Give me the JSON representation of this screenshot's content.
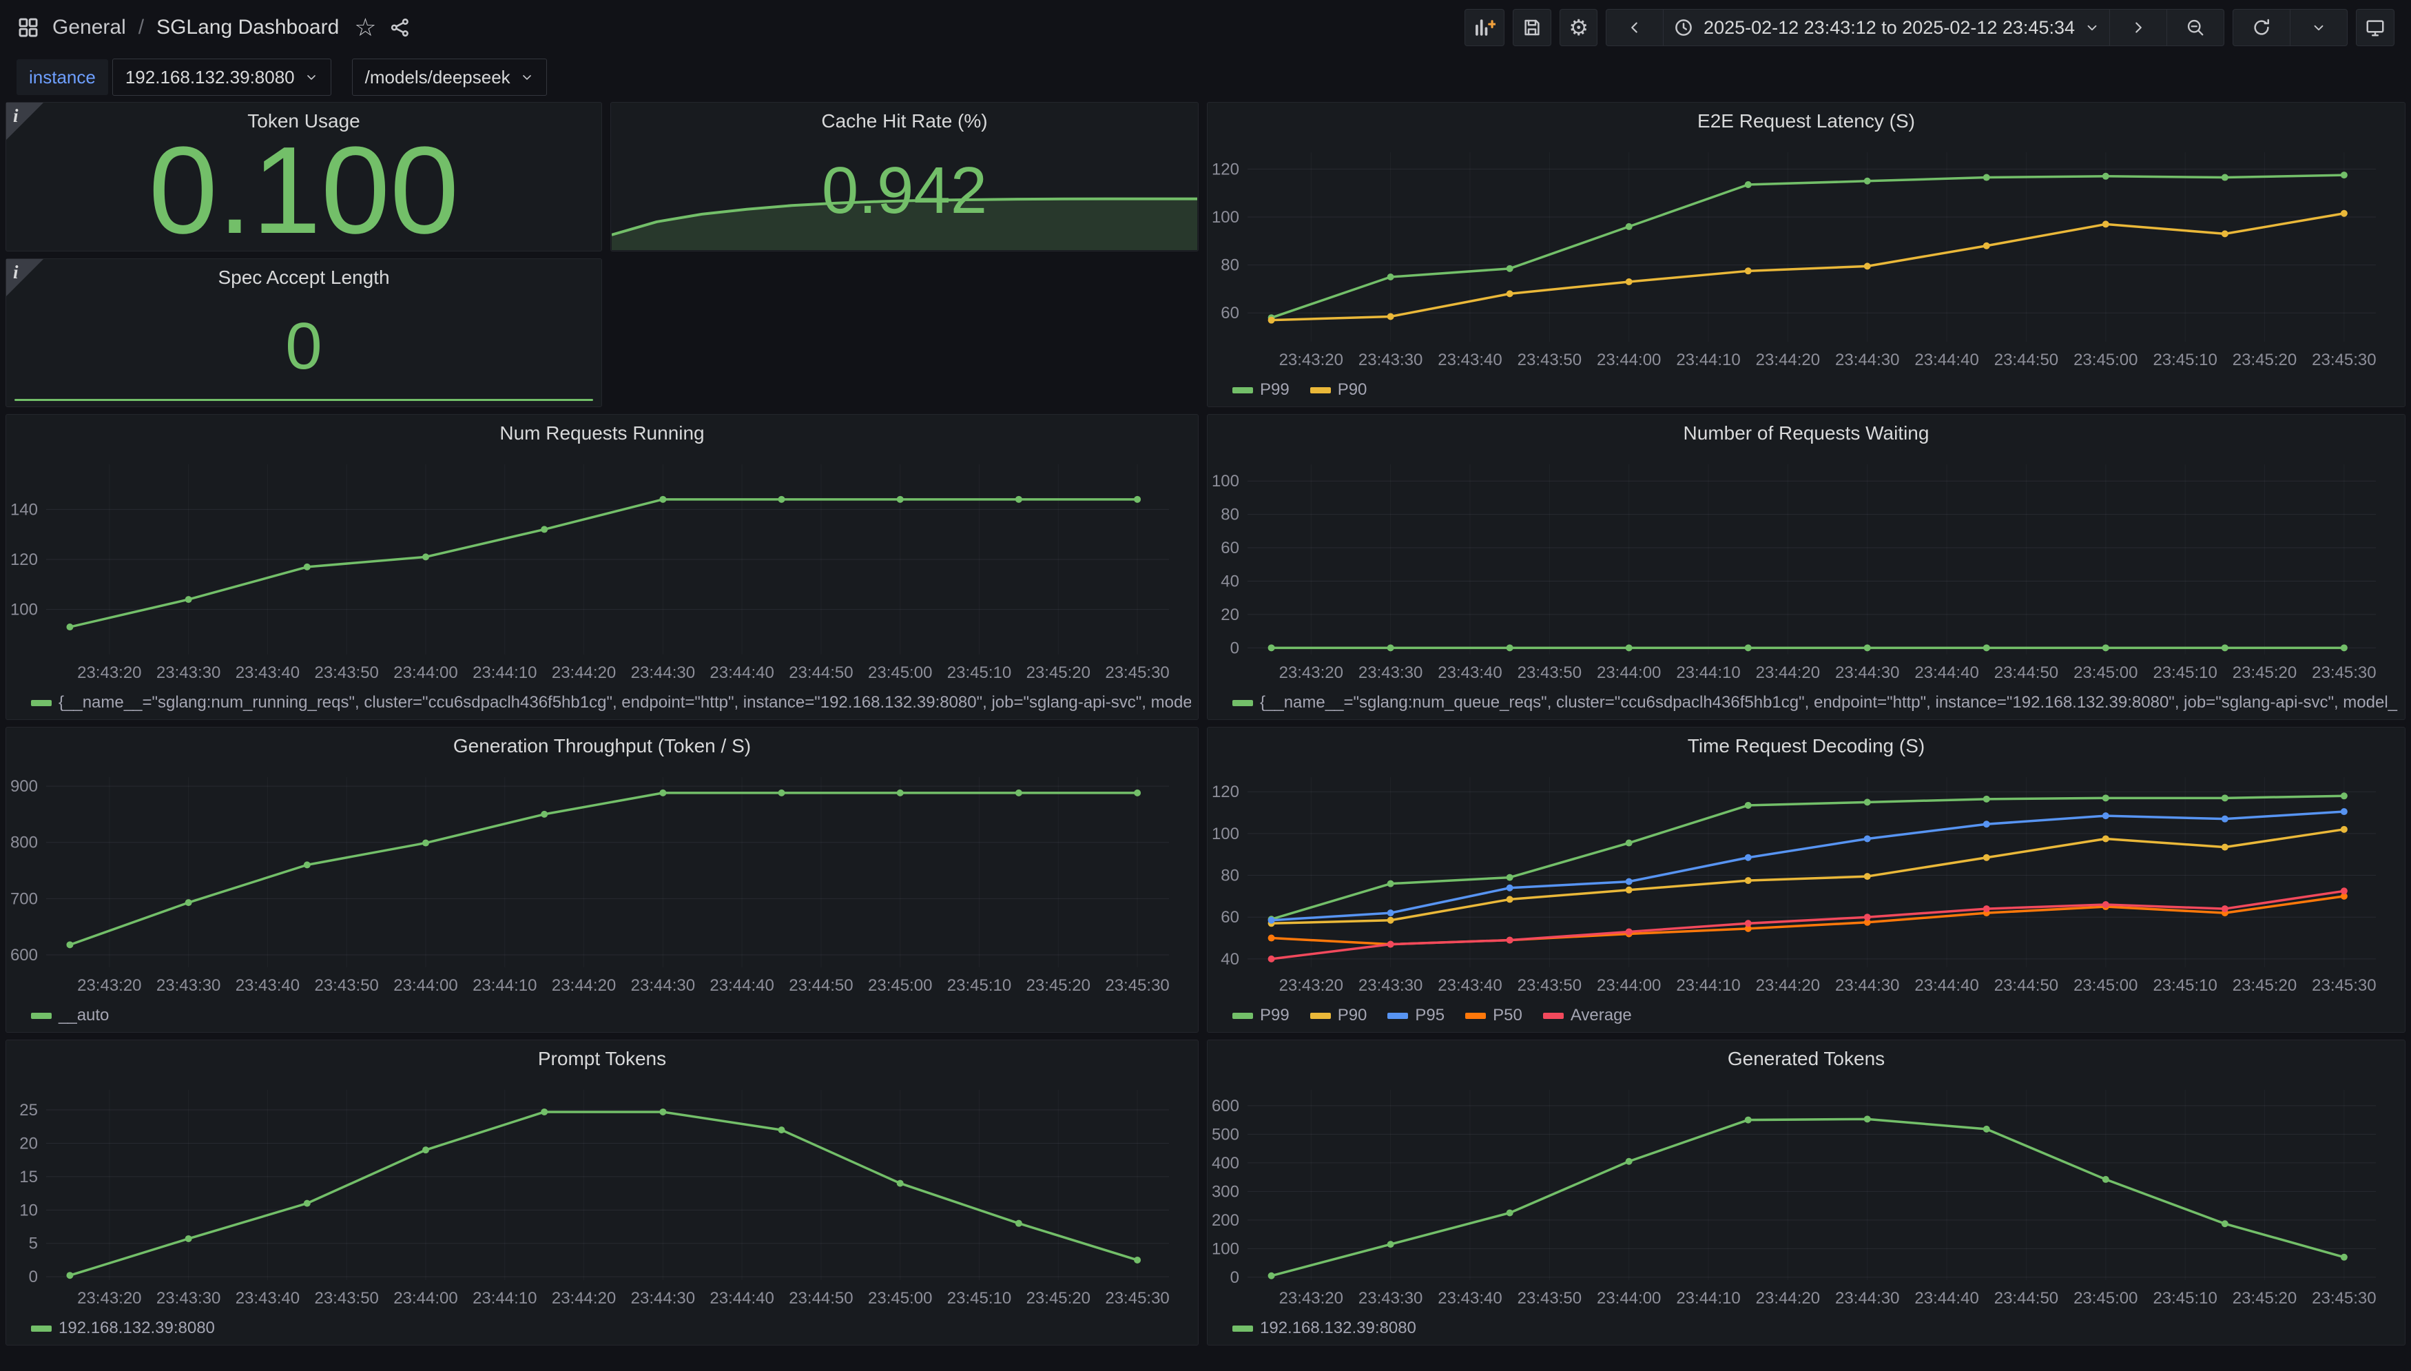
{
  "header": {
    "breadcrumb_section": "General",
    "breadcrumb_separator": "/",
    "breadcrumb_page": "SGLang Dashboard",
    "time_range": "2025-02-12 23:43:12 to 2025-02-12 23:45:34"
  },
  "icons": {
    "gear": "⚙",
    "star": "☆"
  },
  "variables": {
    "instance_label": "instance",
    "instance_value": "192.168.132.39:8080",
    "model_value": "/models/deepseek"
  },
  "panels": {
    "token_usage": {
      "title": "Token Usage",
      "value": "0.100",
      "value_color": "#73BF69"
    },
    "cache_hit_rate": {
      "title": "Cache Hit Rate (%)",
      "value": "0.942",
      "value_color": "#73BF69"
    },
    "spec_accept_length": {
      "title": "Spec Accept Length",
      "value": "0",
      "value_color": "#73BF69"
    },
    "e2e_request_latency": {
      "title": "E2E Request Latency (S)"
    },
    "num_requests_running": {
      "title": "Num Requests Running"
    },
    "num_requests_waiting": {
      "title": "Number of Requests Waiting"
    },
    "generation_throughput": {
      "title": "Generation Throughput (Token / S)"
    },
    "time_request_decoding": {
      "title": "Time Request Decoding (S)"
    },
    "prompt_tokens": {
      "title": "Prompt Tokens"
    },
    "generated_tokens": {
      "title": "Generated Tokens"
    }
  },
  "chart_data": {
    "axis": {
      "x_domain": [
        0,
        142
      ],
      "x_points": [
        3,
        18,
        33,
        48,
        63,
        78,
        93,
        108,
        123,
        138
      ],
      "x_tick_seconds": [
        8,
        18,
        28,
        38,
        48,
        58,
        68,
        78,
        88,
        98,
        108,
        118,
        128,
        138
      ],
      "x_tick_labels": [
        "23:43:20",
        "23:43:30",
        "23:43:40",
        "23:43:50",
        "23:44:00",
        "23:44:10",
        "23:44:20",
        "23:44:30",
        "23:44:40",
        "23:44:50",
        "23:45:00",
        "23:45:10",
        "23:45:20",
        "23:45:30"
      ]
    },
    "charts": [
      {
        "id": "e2e_request_latency",
        "type": "line",
        "yticks": [
          60,
          80,
          100,
          120
        ],
        "ylim": [
          48,
          127
        ],
        "series": [
          {
            "name": "P99",
            "color": "#73BF69",
            "values": [
              58,
              75,
              78.5,
              96,
              113.5,
              115,
              116.5,
              117,
              116.5,
              117.5
            ]
          },
          {
            "name": "P90",
            "color": "#EAB839",
            "values": [
              57,
              58.5,
              68,
              73,
              77.5,
              79.5,
              88,
              97,
              93,
              101.5
            ]
          }
        ]
      },
      {
        "id": "num_requests_running",
        "type": "line",
        "yticks": [
          100,
          120,
          140
        ],
        "ylim": [
          82,
          158
        ],
        "series": [
          {
            "name": "{__name__=\"sglang:num_running_reqs\", cluster=\"ccu6sdpaclh436f5hb1cg\", endpoint=\"http\", instance=\"192.168.132.39:8080\", job=\"sglang-api-svc\", model_name=\"/models/deepseek\", namespace=\"defau",
            "color": "#73BF69",
            "values": [
              93,
              104,
              117,
              121,
              132,
              144,
              144,
              144,
              144,
              144
            ]
          }
        ]
      },
      {
        "id": "num_requests_waiting",
        "type": "line",
        "yticks": [
          0,
          20,
          40,
          60,
          80,
          100
        ],
        "ylim": [
          -4,
          110
        ],
        "series": [
          {
            "name": "{__name__=\"sglang:num_queue_reqs\", cluster=\"ccu6sdpaclh436f5hb1cg\", endpoint=\"http\", instance=\"192.168.132.39:8080\", job=\"sglang-api-svc\", model_name=\"/models/deepseek\", namespace=\"default",
            "color": "#73BF69",
            "values": [
              0,
              0,
              0,
              0,
              0,
              0,
              0,
              0,
              0,
              0
            ]
          }
        ]
      },
      {
        "id": "generation_throughput",
        "type": "line",
        "yticks": [
          600,
          700,
          800,
          900
        ],
        "ylim": [
          578,
          916
        ],
        "series": [
          {
            "name": "__auto",
            "color": "#73BF69",
            "values": [
              618,
              693,
              760,
              799,
              850,
              888,
              888,
              888,
              888,
              888
            ]
          }
        ]
      },
      {
        "id": "time_request_decoding",
        "type": "line",
        "yticks": [
          40,
          60,
          80,
          100,
          120
        ],
        "ylim": [
          36,
          127
        ],
        "series": [
          {
            "name": "P99",
            "color": "#73BF69",
            "values": [
              59,
              76,
              79,
              95.5,
              113.5,
              115,
              116.5,
              117,
              117,
              118
            ]
          },
          {
            "name": "P90",
            "color": "#EAB839",
            "values": [
              57,
              58.5,
              68.5,
              73,
              77.5,
              79.5,
              88.5,
              97.5,
              93.5,
              102
            ]
          },
          {
            "name": "P95",
            "color": "#5794F2",
            "values": [
              58.5,
              62,
              74,
              77,
              88.5,
              97.5,
              104.5,
              108.5,
              107,
              110.5
            ]
          },
          {
            "name": "P50",
            "color": "#FF780A",
            "values": [
              50,
              47,
              49,
              52,
              54.5,
              57.5,
              62,
              65,
              62,
              70
            ]
          },
          {
            "name": "Average",
            "color": "#F2495C",
            "values": [
              40,
              47,
              49,
              53,
              57,
              60,
              64,
              66,
              64,
              72.5
            ]
          }
        ]
      },
      {
        "id": "prompt_tokens",
        "type": "line",
        "yticks": [
          0,
          5,
          10,
          15,
          20,
          25
        ],
        "ylim": [
          -0.5,
          28
        ],
        "series": [
          {
            "name": "192.168.132.39:8080",
            "color": "#73BF69",
            "values": [
              0.2,
              5.7,
              11,
              19,
              24.7,
              24.7,
              22,
              14,
              8,
              2.5
            ]
          }
        ]
      },
      {
        "id": "generated_tokens",
        "type": "line",
        "yticks": [
          0,
          100,
          200,
          300,
          400,
          500,
          600
        ],
        "ylim": [
          -10,
          655
        ],
        "series": [
          {
            "name": "192.168.132.39:8080",
            "color": "#73BF69",
            "values": [
              5,
              115,
              225,
              405,
              550,
              553,
              518,
              342,
              187,
              70
            ]
          }
        ]
      },
      {
        "id": "cache_hit_rate_spark",
        "type": "area",
        "ylim": [
          0,
          1.9
        ],
        "series": [
          {
            "name": "cache_hit_rate",
            "color": "#73BF69",
            "values": [
              0.28,
              0.52,
              0.66,
              0.75,
              0.82,
              0.865,
              0.895,
              0.915,
              0.927,
              0.935,
              0.94,
              0.942,
              0.942,
              0.942
            ]
          }
        ]
      },
      {
        "id": "spec_accept_length_spark",
        "type": "sparkline",
        "values": [
          0,
          0
        ]
      }
    ]
  }
}
